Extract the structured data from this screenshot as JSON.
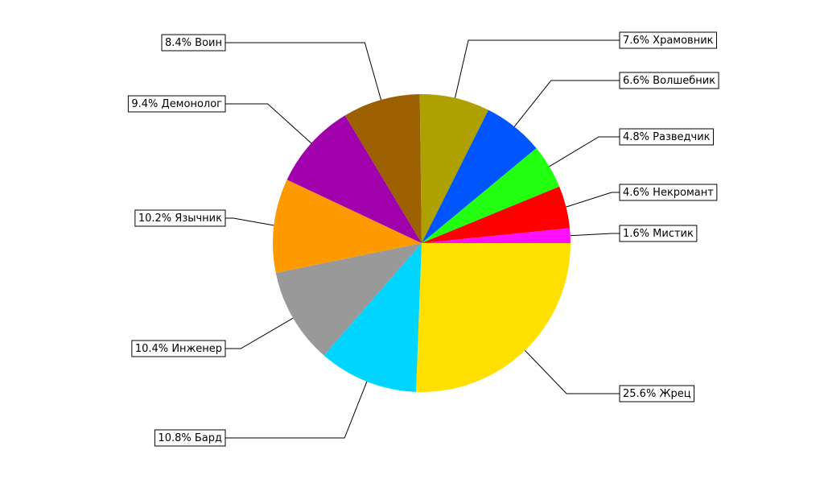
{
  "chart_data": {
    "type": "pie",
    "categories": [
      "Жрец",
      "Бард",
      "Инженер",
      "Язычник",
      "Демонолог",
      "Воин",
      "Храмовник",
      "Волшебник",
      "Разведчик",
      "Некромант",
      "Мистик"
    ],
    "values": [
      25.6,
      10.8,
      10.4,
      10.2,
      9.4,
      8.4,
      7.6,
      6.6,
      4.8,
      4.6,
      1.6
    ],
    "value_labels": [
      "25.6%",
      "10.8%",
      "10.4%",
      "10.2%",
      "9.4%",
      "8.4%",
      "7.6%",
      "6.6%",
      "4.8%",
      "4.6%",
      "1.6%"
    ],
    "colors": [
      "#ffe000",
      "#00d5ff",
      "#999999",
      "#ff9900",
      "#a100ad",
      "#9c6000",
      "#ada000",
      "#0055ff",
      "#22ff11",
      "#ff0000",
      "#ff11ff"
    ]
  }
}
